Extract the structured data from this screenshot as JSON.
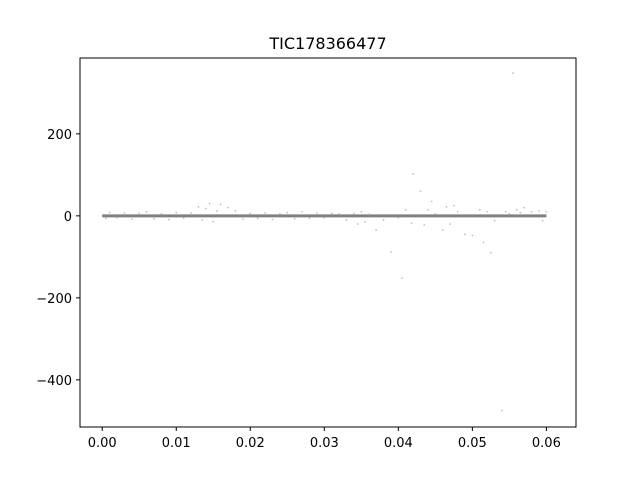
{
  "chart_data": {
    "type": "scatter",
    "title": "TIC178366477",
    "xlabel": "",
    "ylabel": "",
    "xlim": [
      -0.003,
      0.064
    ],
    "ylim": [
      -515,
      385
    ],
    "x_ticks": [
      0.0,
      0.01,
      0.02,
      0.03,
      0.04,
      0.05,
      0.06
    ],
    "x_tick_labels": [
      "0.00",
      "0.01",
      "0.02",
      "0.03",
      "0.04",
      "0.05",
      "0.06"
    ],
    "y_ticks": [
      -400,
      -200,
      0,
      200
    ],
    "y_tick_labels": [
      "−400",
      "−200",
      "0",
      "200"
    ],
    "grid": false,
    "colors": {
      "main_points": "#808080",
      "scatter_points": "#bfbfbf",
      "frame": "#000000"
    },
    "series": [
      {
        "x": [
          0.0,
          0.06
        ],
        "y": [
          0,
          0
        ],
        "style": "dense-band"
      },
      {
        "x": [
          0.0005,
          0.001,
          0.002,
          0.003,
          0.004,
          0.005,
          0.006,
          0.007,
          0.008,
          0.009,
          0.01,
          0.011,
          0.012,
          0.013,
          0.0135,
          0.014,
          0.0145,
          0.015,
          0.0155,
          0.016,
          0.017,
          0.018,
          0.019,
          0.02,
          0.021,
          0.022,
          0.023,
          0.024,
          0.025,
          0.026,
          0.027,
          0.028,
          0.029,
          0.03,
          0.031,
          0.032,
          0.033,
          0.034,
          0.0345,
          0.035,
          0.0355,
          0.036,
          0.037,
          0.038,
          0.039,
          0.04,
          0.0405,
          0.041,
          0.0418,
          0.042,
          0.043,
          0.0435,
          0.044,
          0.0445,
          0.045,
          0.046,
          0.0465,
          0.047,
          0.0475,
          0.048,
          0.049,
          0.05,
          0.051,
          0.0515,
          0.052,
          0.0525,
          0.053,
          0.054,
          0.0545,
          0.055,
          0.0555,
          0.056,
          0.0565,
          0.057,
          0.058,
          0.059,
          0.0595,
          0.06
        ],
        "y": [
          -6,
          8,
          -5,
          7,
          -8,
          6,
          10,
          -7,
          5,
          -9,
          8,
          -6,
          7,
          22,
          -10,
          18,
          30,
          -14,
          12,
          28,
          20,
          12,
          -8,
          6,
          -6,
          7,
          -9,
          5,
          8,
          -7,
          10,
          -6,
          7,
          -5,
          6,
          5,
          -10,
          6,
          -20,
          10,
          -15,
          4,
          -35,
          -10,
          -88,
          -5,
          -152,
          15,
          -18,
          102,
          60,
          -22,
          15,
          35,
          5,
          -35,
          22,
          -20,
          25,
          10,
          -45,
          -48,
          15,
          -65,
          10,
          -90,
          -12,
          -475,
          10,
          5,
          348,
          15,
          8,
          20,
          10,
          12,
          -12,
          10
        ]
      }
    ]
  }
}
